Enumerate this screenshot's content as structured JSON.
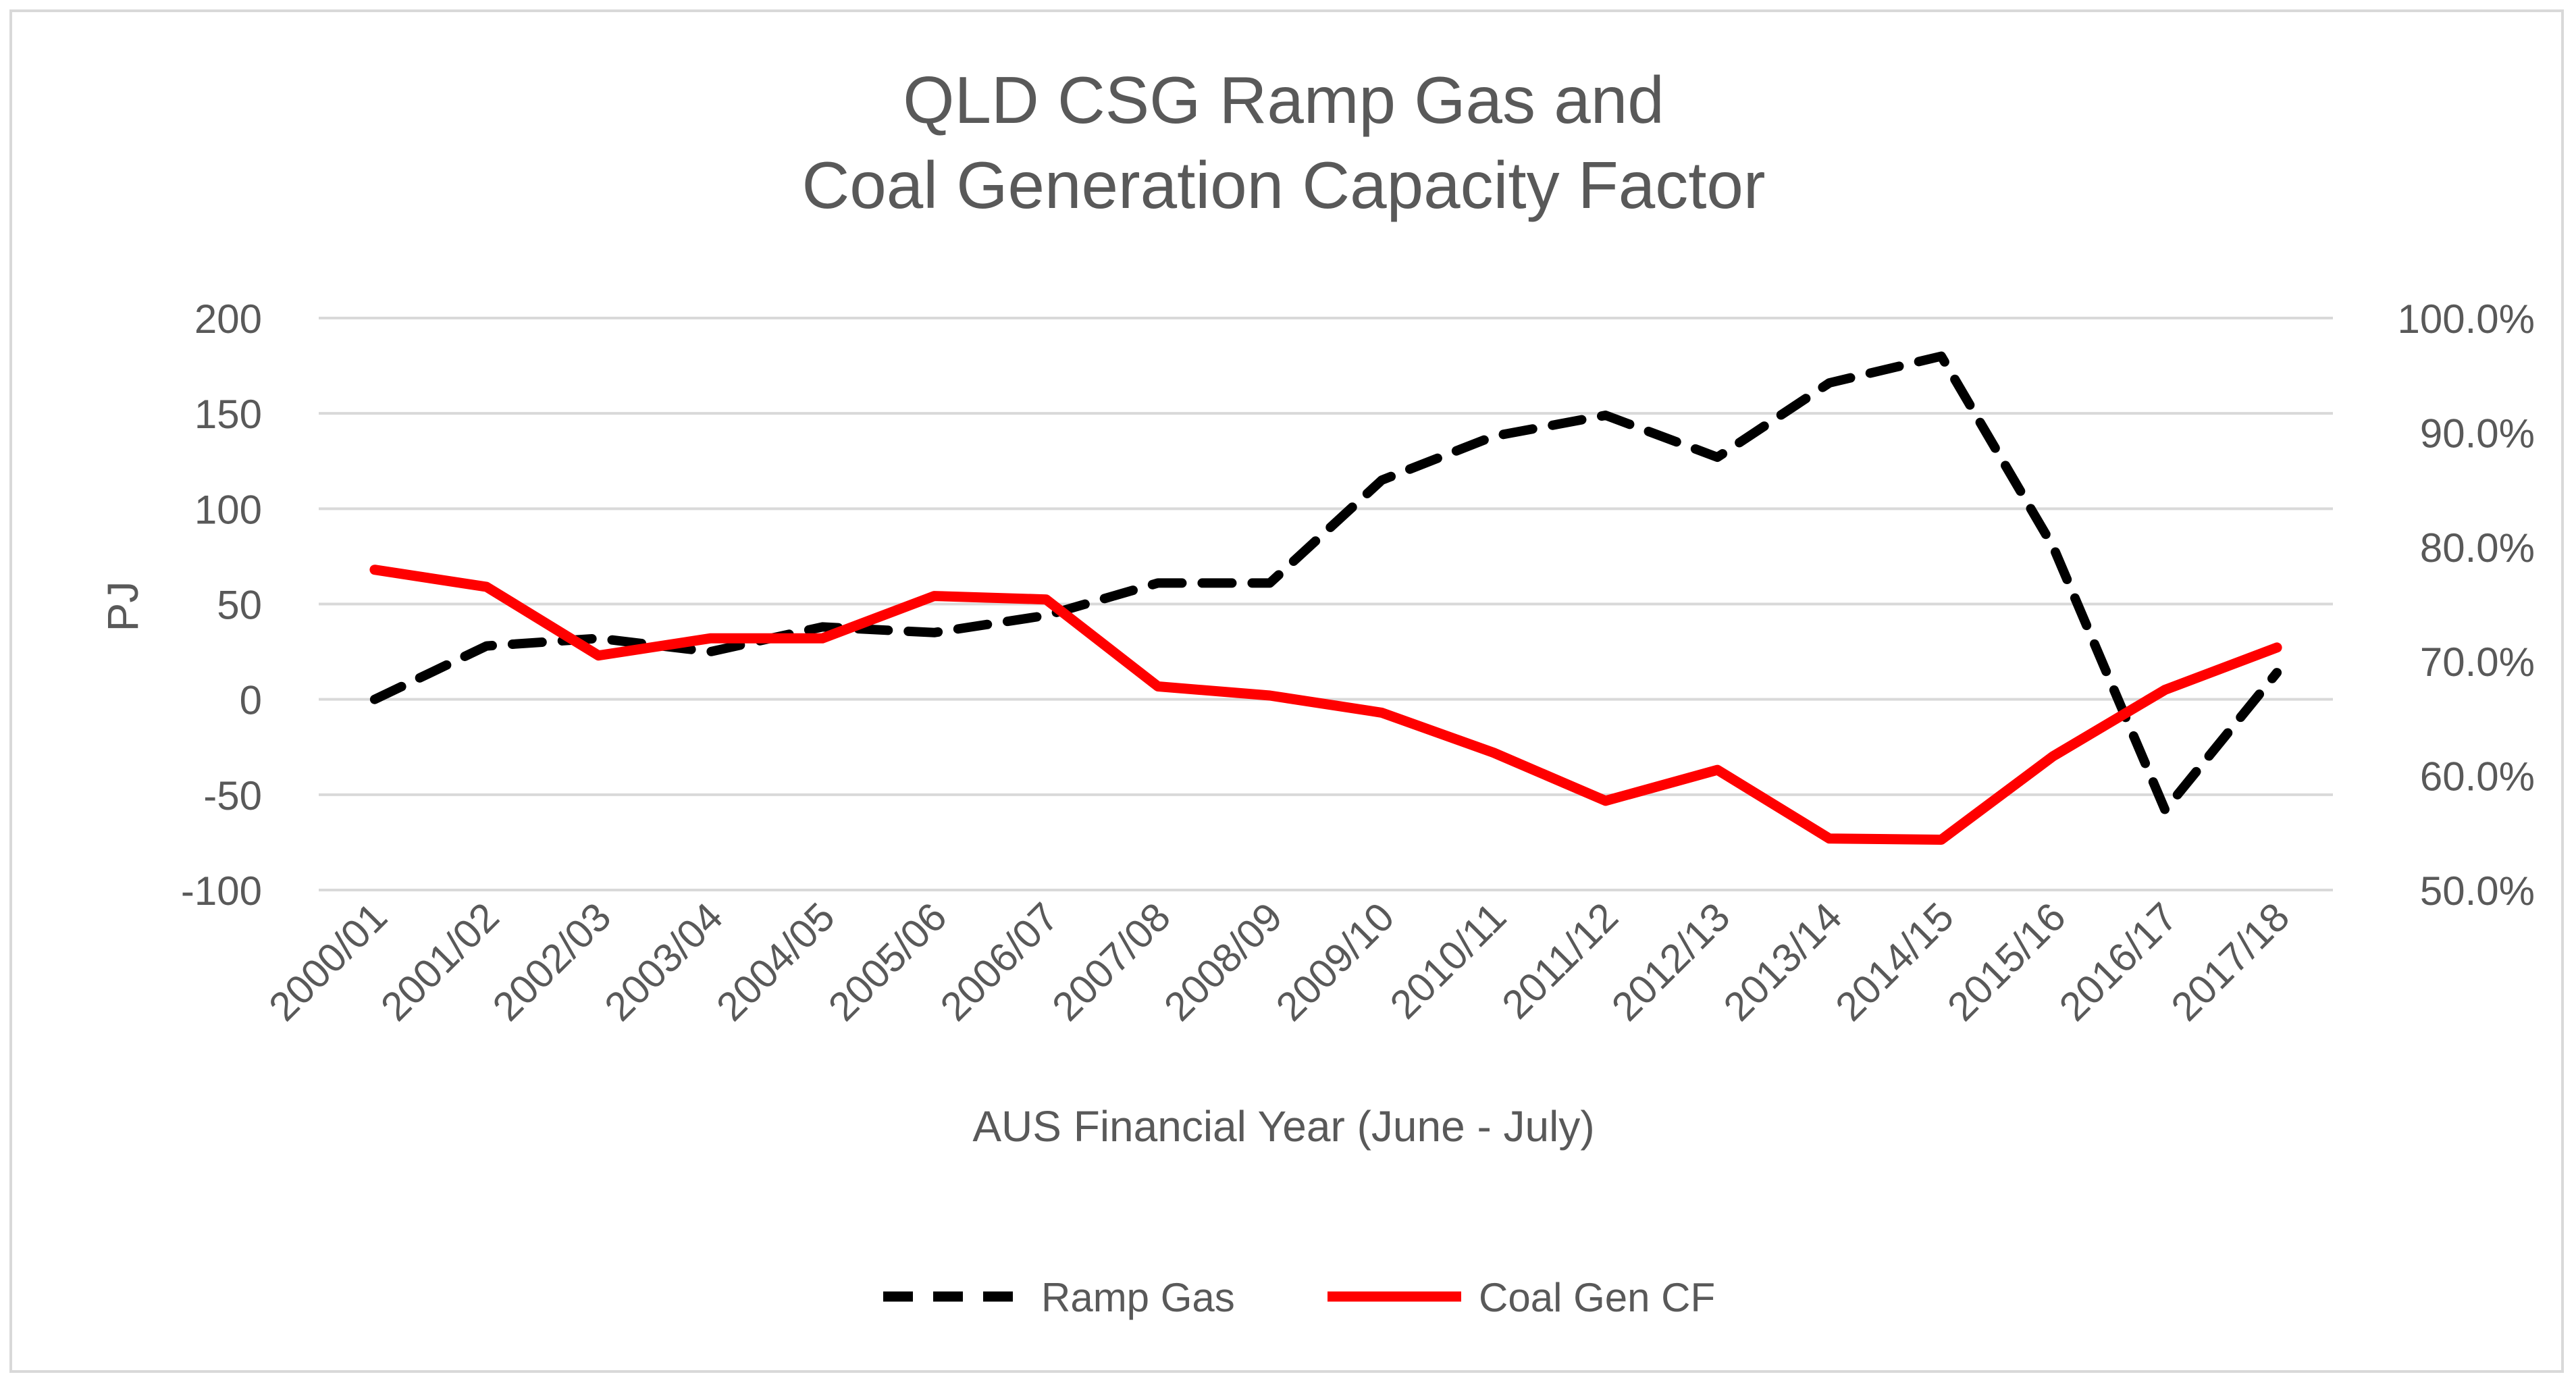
{
  "chart_data": {
    "type": "line",
    "title_lines": [
      "QLD CSG Ramp Gas and",
      "Coal Generation Capacity Factor"
    ],
    "xlabel": "AUS Financial Year (June - July)",
    "ylabel": "PJ",
    "y2label": "",
    "categories": [
      "2000/01",
      "2001/02",
      "2002/03",
      "2003/04",
      "2004/05",
      "2005/06",
      "2006/07",
      "2007/08",
      "2008/09",
      "2009/10",
      "2010/11",
      "2011/12",
      "2012/13",
      "2013/14",
      "2014/15",
      "2015/16",
      "2016/17",
      "2017/18"
    ],
    "ylim": [
      -100,
      200
    ],
    "yticks": [
      200,
      150,
      100,
      50,
      0,
      -50,
      -100
    ],
    "ytick_labels": [
      "200",
      "150",
      "100",
      "50",
      "0",
      "-50",
      "-100"
    ],
    "y2lim": [
      50,
      100
    ],
    "y2ticks": [
      100,
      90,
      80,
      70,
      60,
      50
    ],
    "y2tick_labels": [
      "100.0%",
      "90.0%",
      "80.0%",
      "70.0%",
      "60.0%",
      "50.0%"
    ],
    "grid": true,
    "legend_position": "bottom",
    "series": [
      {
        "name": "Ramp Gas",
        "axis": "left",
        "color": "#000000",
        "style": "dashed",
        "values": [
          0,
          28,
          32,
          25,
          38,
          35,
          44,
          61,
          61,
          115,
          138,
          149,
          127,
          166,
          180,
          80,
          -58,
          14
        ]
      },
      {
        "name": "Coal Gen CF",
        "axis": "right",
        "color": "#ff0000",
        "style": "solid",
        "values": [
          78.0,
          76.5,
          70.5,
          72.0,
          72.0,
          75.7,
          75.4,
          67.8,
          67.0,
          65.5,
          62.0,
          57.8,
          60.5,
          54.5,
          54.4,
          61.7,
          67.5,
          71.2
        ]
      }
    ]
  }
}
